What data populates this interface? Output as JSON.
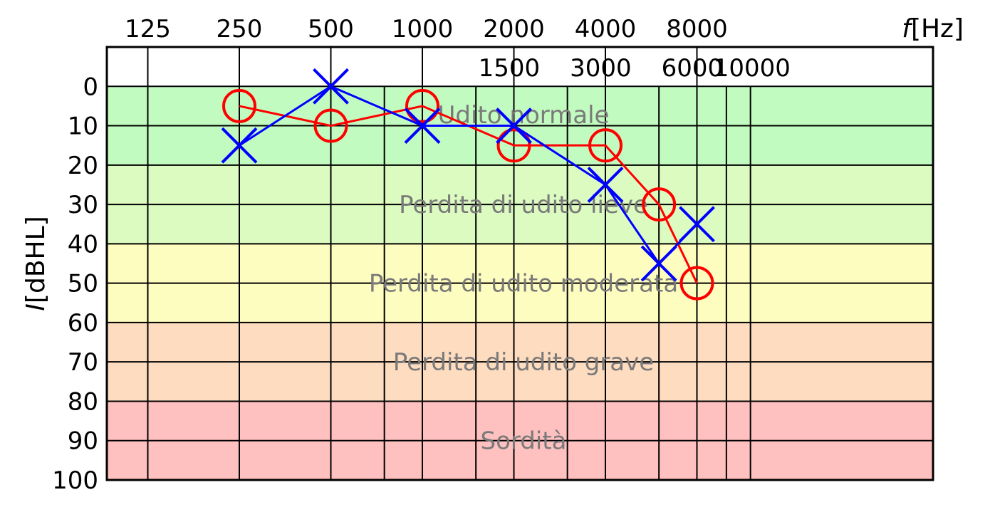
{
  "chart_data": {
    "type": "line",
    "xlabel": {
      "var": "f",
      "unit": "[Hz]"
    },
    "ylabel": {
      "var": "I",
      "unit": "[dBHL]"
    },
    "x_scale": "log2",
    "x_ticks_top": [
      "125",
      "250",
      "500",
      "1000",
      "2000",
      "4000",
      "8000"
    ],
    "x_ticks_mid": [
      "1500",
      "3000",
      "6000",
      "10000"
    ],
    "y_ticks": [
      "0",
      "10",
      "20",
      "30",
      "40",
      "50",
      "60",
      "70",
      "80",
      "90",
      "100"
    ],
    "ylim": [
      -10,
      100
    ],
    "y_inverted": true,
    "grid": true,
    "zones": [
      {
        "label": "Udito normale",
        "from": -10,
        "to": 20,
        "color": "#c2fbc0"
      },
      {
        "label": "Perdita di udito lieve",
        "from": 20,
        "to": 40,
        "color": "#dcfbc0"
      },
      {
        "label": "Perdita di udito moderata",
        "from": 40,
        "to": 60,
        "color": "#fefdc0"
      },
      {
        "label": "Perdita di udito grave",
        "from": 60,
        "to": 80,
        "color": "#fedcc0"
      },
      {
        "label": "Sordità",
        "from": 80,
        "to": 100,
        "color": "#ffc0c0"
      }
    ],
    "series": [
      {
        "marker": "circle",
        "color": "#ff0000",
        "x": [
          250,
          500,
          1000,
          2000,
          4000,
          6000,
          8000
        ],
        "values": [
          5,
          10,
          5,
          15,
          15,
          30,
          50
        ]
      },
      {
        "marker": "cross",
        "color": "#0000ff",
        "x": [
          250,
          500,
          1000,
          2000,
          4000,
          6000,
          8000
        ],
        "values": [
          15,
          0,
          10,
          10,
          25,
          45,
          35
        ]
      }
    ]
  }
}
